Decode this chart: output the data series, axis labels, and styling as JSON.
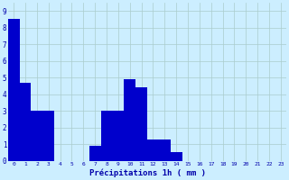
{
  "values": [
    8.5,
    4.7,
    3.0,
    3.0,
    0,
    0,
    0,
    0.9,
    3.0,
    3.0,
    4.9,
    4.4,
    1.3,
    1.3,
    0.5,
    0,
    0,
    0,
    0,
    0,
    0,
    0,
    0,
    0
  ],
  "categories": [
    0,
    1,
    2,
    3,
    4,
    5,
    6,
    7,
    8,
    9,
    10,
    11,
    12,
    13,
    14,
    15,
    16,
    17,
    18,
    19,
    20,
    21,
    22,
    23
  ],
  "bar_color": "#0000cc",
  "background_color": "#cceeff",
  "grid_color": "#aacccc",
  "xlabel": "Précipitations 1h ( mm )",
  "tick_color": "#0000aa",
  "ylim": [
    0,
    9.5
  ],
  "yticks": [
    0,
    1,
    2,
    3,
    4,
    5,
    6,
    7,
    8,
    9
  ],
  "figsize": [
    3.2,
    2.0
  ],
  "dpi": 100
}
